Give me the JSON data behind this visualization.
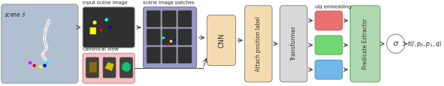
{
  "bg_color": "#ffffff",
  "scene_label": "scene $S$",
  "input_scene_label": "input scene image",
  "patches_label": "scene image patches",
  "canonical_label": "canonical view",
  "cnn_label": "CNN",
  "attach_label": "Attach position label",
  "transformer_label": "Transformer",
  "obj_emb_label": "obj embedding",
  "pred_ext_label": "Predicate Extractor",
  "sigma_label": "$\\sigma$",
  "output_label": "$t(I, p_0, p_1, q)$",
  "scene_bg": "#b0c0d0",
  "input_scene_bg": "#303030",
  "patches_bg": "#9898cc",
  "cnn_bg": "#f5dcb0",
  "canonical_bg": "#f5c0c0",
  "attach_bg": "#f5dcb0",
  "transformer_bg": "#d8d8d8",
  "pred_ext_bg": "#b0d8b0",
  "red_color": "#e87070",
  "green_color": "#70d870",
  "blue_color": "#70b8e8",
  "border_color": "#888888",
  "scene_border": "#999999",
  "input_border": "#aaaaaa",
  "canonical_border": "#cc8888",
  "patches_border": "#7070aa",
  "pred_ext_border": "#55aa55"
}
